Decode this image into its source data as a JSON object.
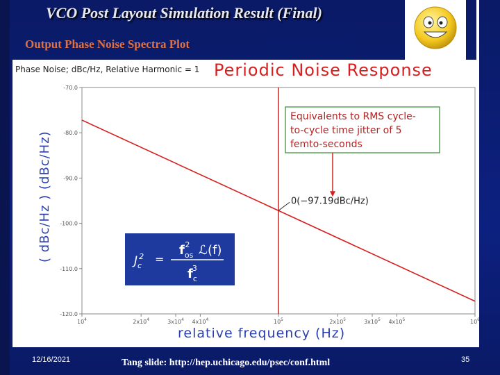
{
  "slide": {
    "title": "VCO Post Layout Simulation Result (Final)",
    "subtitle": "Output Phase Noise Spectra Plot",
    "date": "12/16/2021",
    "credit": "Tang slide: http://hep.uchicago.edu/psec/conf.html",
    "page_number": "35",
    "logo_icon": "smiley-face-icon"
  },
  "chart_data": {
    "type": "line",
    "header": "Phase Noise; dBc/Hz, Relative Harmonic = 1",
    "title": "Periodic Noise Response",
    "xlabel": "relative frequency (Hz)",
    "ylabel": "( dBc/Hz ) (dBc/Hz)",
    "x_scale": "log",
    "xlim": [
      10000,
      1000000
    ],
    "ylim": [
      -120,
      -70
    ],
    "x_ticks": [
      {
        "value": 10000,
        "base": "10",
        "exp": "4"
      },
      {
        "value": 20000,
        "base": "2x10",
        "exp": "4"
      },
      {
        "value": 30000,
        "base": "3x10",
        "exp": "4"
      },
      {
        "value": 40000,
        "base": "4x10",
        "exp": "4"
      },
      {
        "value": 100000,
        "base": "10",
        "exp": "5"
      },
      {
        "value": 200000,
        "base": "2x10",
        "exp": "5"
      },
      {
        "value": 300000,
        "base": "3x10",
        "exp": "5"
      },
      {
        "value": 400000,
        "base": "4x10",
        "exp": "5"
      },
      {
        "value": 1000000,
        "base": "10",
        "exp": "6"
      }
    ],
    "y_ticks": [
      {
        "value": -70,
        "label": "-70.0"
      },
      {
        "value": -80,
        "label": "-80.0"
      },
      {
        "value": -90,
        "label": "-90.0"
      },
      {
        "value": -100,
        "label": "-100.0"
      },
      {
        "value": -110,
        "label": "-110.0"
      },
      {
        "value": -120,
        "label": "-120.0"
      }
    ],
    "series": [
      {
        "color": "#d62020",
        "x": [
          10000,
          100000,
          1000000
        ],
        "y": [
          -77.2,
          -97.19,
          -117.2
        ]
      }
    ],
    "marker": {
      "x": 100000,
      "y": -97.19,
      "label": "0(−97.19dBc/Hz)",
      "color": "#d62020"
    },
    "annotation": {
      "lines": [
        "Equivalents to RMS cycle-",
        "to-cycle time jitter of 5",
        "femto-seconds"
      ],
      "color": "#b22222",
      "border": "#2e8b2e"
    },
    "formula": {
      "lhs": "J",
      "lhs_sub": "c",
      "lhs_sup": "2",
      "equals": "=",
      "num_f": "f",
      "num_sub": "os",
      "num_sup": "2",
      "num_L": "ℒ(f)",
      "den_f": "f",
      "den_sub": "c",
      "den_sup": "3",
      "bg": "#1f3a9e"
    },
    "grid": false
  }
}
